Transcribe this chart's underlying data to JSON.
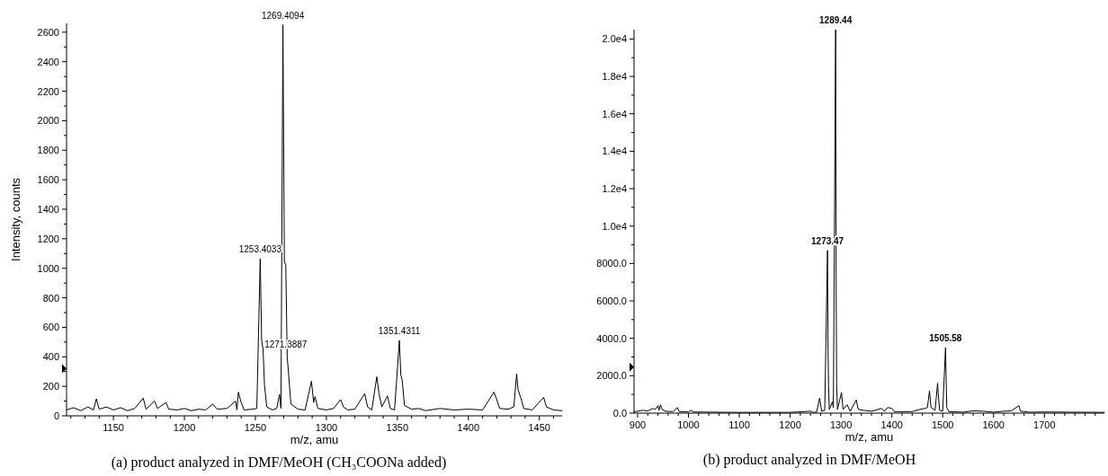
{
  "chart_data": [
    {
      "type": "line",
      "title": "(a) product analyzed in DMF/MeOH (CH₃COONa added)",
      "xlabel": "m/z, amu",
      "ylabel": "Intensity, counts",
      "xlim": [
        1117,
        1466
      ],
      "ylim": [
        0,
        2660
      ],
      "xticks": [
        1150,
        1200,
        1250,
        1300,
        1350,
        1400,
        1450
      ],
      "yticks": [
        0,
        200,
        400,
        600,
        800,
        1000,
        1200,
        1400,
        1600,
        1800,
        2000,
        2200,
        2400,
        2600
      ],
      "series": [
        {
          "color": "#000000",
          "x": [
            1117,
            1122,
            1127,
            1132,
            1136,
            1138,
            1140,
            1145,
            1150,
            1155,
            1160,
            1165,
            1171,
            1173,
            1179,
            1181,
            1187,
            1189,
            1195,
            1200,
            1205,
            1210,
            1215,
            1220,
            1223,
            1230,
            1236,
            1237,
            1238,
            1240,
            1242,
            1248,
            1251,
            1253.4,
            1254.4,
            1255.4,
            1256.4,
            1258,
            1262,
            1265,
            1267,
            1268,
            1269.4,
            1270.4,
            1271.4,
            1272.4,
            1273.4,
            1275,
            1280,
            1285,
            1289.5,
            1291,
            1292,
            1294,
            1300,
            1305,
            1310,
            1312,
            1315,
            1320,
            1327,
            1329,
            1332,
            1335.5,
            1337,
            1339,
            1343,
            1345,
            1348,
            1351.4,
            1352.4,
            1353.4,
            1355,
            1360,
            1365,
            1370,
            1380,
            1390,
            1400,
            1410,
            1418,
            1420,
            1422,
            1428,
            1432,
            1434,
            1435,
            1437,
            1439,
            1445,
            1453,
            1455,
            1460,
            1466
          ],
          "values": [
            40,
            55,
            35,
            60,
            40,
            115,
            45,
            60,
            40,
            55,
            35,
            50,
            120,
            45,
            100,
            50,
            90,
            45,
            40,
            50,
            35,
            45,
            40,
            80,
            45,
            50,
            100,
            40,
            160,
            90,
            40,
            45,
            50,
            1065,
            510,
            450,
            210,
            60,
            40,
            50,
            145,
            50,
            2650,
            1050,
            1020,
            400,
            280,
            80,
            45,
            40,
            235,
            90,
            130,
            50,
            40,
            50,
            110,
            60,
            40,
            45,
            150,
            60,
            40,
            265,
            155,
            60,
            135,
            50,
            40,
            510,
            280,
            240,
            70,
            45,
            50,
            35,
            50,
            40,
            45,
            40,
            160,
            110,
            50,
            45,
            60,
            285,
            175,
            120,
            50,
            40,
            125,
            60,
            40,
            35
          ]
        }
      ],
      "annotations": [
        {
          "text": "1269.4094",
          "x": 1269.4,
          "y": 2650
        },
        {
          "text": "1253.4033",
          "x": 1253.4,
          "y": 1065
        },
        {
          "text": "1271.3887",
          "x": 1271.4,
          "y": 420
        },
        {
          "text": "1351.4311",
          "x": 1351.4,
          "y": 510
        }
      ]
    },
    {
      "type": "line",
      "title": "(b) product analyzed in DMF/MeOH",
      "xlabel": "m/z, amu",
      "xlim": [
        893,
        1818
      ],
      "ylim": [
        0,
        20500
      ],
      "xticks": [
        900,
        1000,
        1100,
        1200,
        1300,
        1400,
        1500,
        1600,
        1700
      ],
      "yticks": [
        {
          "value": 0,
          "label": "0.0"
        },
        {
          "value": 2000,
          "label": "2000.0"
        },
        {
          "value": 4000,
          "label": "4000.0"
        },
        {
          "value": 6000,
          "label": "6000.0"
        },
        {
          "value": 8000,
          "label": "8000.0"
        },
        {
          "value": 10000,
          "label": "1.0e4"
        },
        {
          "value": 12000,
          "label": "1.2e4"
        },
        {
          "value": 14000,
          "label": "1.4e4"
        },
        {
          "value": 16000,
          "label": "1.6e4"
        },
        {
          "value": 18000,
          "label": "1.8e4"
        },
        {
          "value": 20000,
          "label": "2.0e4"
        }
      ],
      "series": [
        {
          "color": "#000000",
          "x": [
            893,
            900,
            910,
            920,
            930,
            935,
            940,
            942,
            945,
            948,
            955,
            970,
            978,
            982,
            1000,
            1005,
            1010,
            1050,
            1100,
            1150,
            1200,
            1240,
            1245,
            1252,
            1258,
            1262,
            1268,
            1273.47,
            1274.5,
            1275.5,
            1277,
            1283,
            1285,
            1289.44,
            1290.4,
            1291.4,
            1293,
            1301,
            1304,
            1312,
            1318,
            1330,
            1334,
            1345,
            1360,
            1380,
            1385,
            1392,
            1400,
            1405,
            1420,
            1440,
            1455,
            1465,
            1470,
            1474,
            1477,
            1485,
            1490,
            1491,
            1494,
            1500,
            1505.58,
            1506.6,
            1508,
            1512,
            1540,
            1560,
            1580,
            1600,
            1620,
            1635,
            1650,
            1653,
            1670,
            1700,
            1750,
            1818
          ],
          "values": [
            80,
            100,
            150,
            120,
            250,
            200,
            400,
            150,
            450,
            200,
            100,
            80,
            300,
            80,
            60,
            150,
            60,
            50,
            40,
            40,
            40,
            100,
            40,
            50,
            800,
            100,
            150,
            8700,
            3300,
            1500,
            200,
            600,
            300,
            20500,
            7000,
            1600,
            200,
            1100,
            200,
            450,
            100,
            700,
            200,
            150,
            100,
            250,
            100,
            300,
            250,
            80,
            80,
            80,
            200,
            250,
            300,
            1200,
            300,
            150,
            1600,
            1100,
            150,
            100,
            3500,
            2100,
            300,
            80,
            50,
            120,
            100,
            50,
            100,
            120,
            400,
            100,
            50,
            60,
            50,
            40
          ]
        }
      ],
      "annotations": [
        {
          "text": "1289.44",
          "x": 1289.44,
          "y": 20500
        },
        {
          "text": "1273.47",
          "x": 1273.47,
          "y": 8700
        },
        {
          "text": "1505.58",
          "x": 1505.58,
          "y": 3500
        }
      ]
    }
  ]
}
